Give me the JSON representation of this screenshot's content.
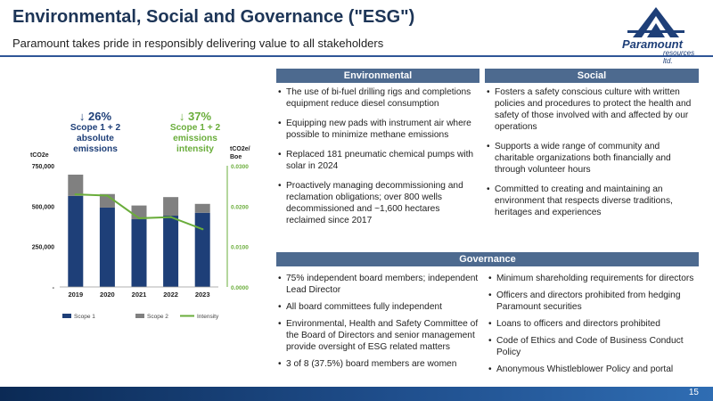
{
  "header": {
    "title": "Environmental, Social and Governance (\"ESG\")",
    "subtitle": "Paramount takes pride in responsibly delivering value to all stakeholders"
  },
  "logo": {
    "word": "Paramount",
    "sub": "resources ltd."
  },
  "callouts": {
    "left": {
      "arrow": "↓",
      "pct": "26%",
      "label": "Scope 1 + 2 absolute emissions",
      "color": "#1e3f78"
    },
    "right": {
      "arrow": "↓",
      "pct": "37%",
      "label": "Scope 1 + 2 emissions intensity",
      "color": "#6aad3b"
    }
  },
  "chart_data": {
    "type": "bar",
    "stacked": true,
    "categories": [
      "2019",
      "2020",
      "2021",
      "2022",
      "2023"
    ],
    "series": [
      {
        "name": "Scope 1",
        "type": "bar",
        "axis": "left",
        "color": "#1e3f78",
        "values": [
          563000,
          491000,
          419000,
          441000,
          459000
        ]
      },
      {
        "name": "Scope 2",
        "type": "bar",
        "axis": "left",
        "color": "#808080",
        "values": [
          132000,
          84000,
          85000,
          115000,
          55000
        ]
      },
      {
        "name": "Intensity",
        "type": "line",
        "axis": "right",
        "color": "#6aad3b",
        "values": [
          0.0229,
          0.0226,
          0.017,
          0.0173,
          0.0143
        ]
      }
    ],
    "left_axis": {
      "unit": "tCO2e",
      "ticks": [
        "-",
        "250,000",
        "500,000",
        "750,000"
      ],
      "range": [
        0,
        750000
      ]
    },
    "right_axis": {
      "unit": "tCO2e/ Boe",
      "ticks": [
        "0.0000",
        "0.0100",
        "0.0200",
        "0.0300"
      ],
      "range": [
        0,
        0.03
      ]
    },
    "legend_position": "bottom"
  },
  "environmental": {
    "heading": "Environmental",
    "items": [
      "The use of bi-fuel drilling rigs and completions equipment reduce diesel consumption",
      "Equipping new pads with instrument air where possible to minimize methane emissions",
      "Replaced 181 pneumatic chemical pumps with solar in 2024",
      "Proactively managing decommissioning and reclamation obligations; over 800 wells decommissioned and ~1,600 hectares reclaimed since 2017"
    ]
  },
  "social": {
    "heading": "Social",
    "items": [
      "Fosters a safety conscious culture with written policies and procedures to protect the health and safety of those involved with and affected by our operations",
      "Supports a wide range of community and charitable organizations both financially and through volunteer hours",
      "Committed to creating and maintaining an environment that respects diverse traditions, heritages and experiences"
    ]
  },
  "governance": {
    "heading": "Governance",
    "left_items": [
      "75% independent board members; independent Lead Director",
      "All board committees fully independent",
      "Environmental, Health and Safety Committee of the Board of Directors and senior management provide oversight of ESG related matters",
      "3 of 8 (37.5%) board members are women"
    ],
    "right_items": [
      "Minimum shareholding requirements for directors",
      "Officers and directors prohibited from hedging Paramount securities",
      "Loans to officers and directors prohibited",
      "Code of Ethics and Code of Business Conduct Policy",
      "Anonymous Whistleblower Policy and portal"
    ]
  },
  "footer": {
    "page": "15"
  }
}
